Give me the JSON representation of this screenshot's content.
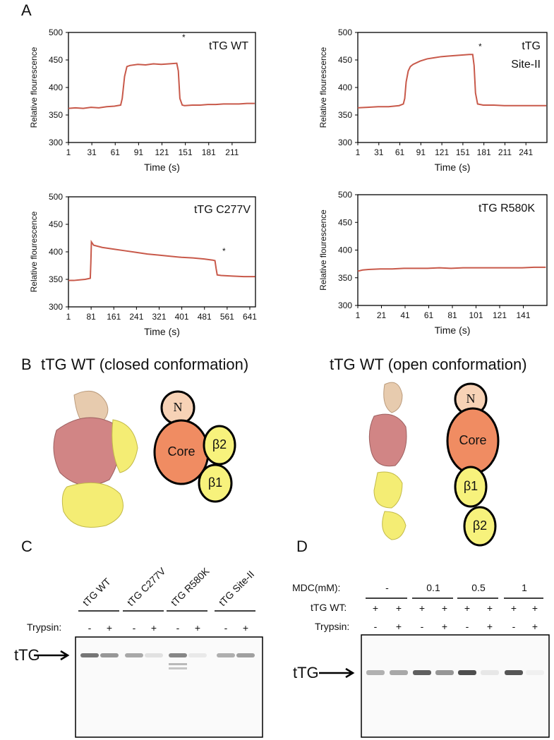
{
  "panel_labels": [
    "A",
    "B",
    "C",
    "D"
  ],
  "chart_data": [
    {
      "type": "line",
      "title": [
        "tTG WT"
      ],
      "annotation": "*",
      "xlabel": "Time (s)",
      "ylabel": "Relative flourescence",
      "x": [
        1,
        10,
        20,
        30,
        40,
        50,
        60,
        68,
        70,
        73,
        76,
        80,
        90,
        100,
        110,
        120,
        130,
        140,
        142,
        144,
        147,
        150,
        160,
        170,
        180,
        190,
        200,
        210,
        220,
        230,
        240
      ],
      "series": [
        {
          "color": "#c8594a",
          "values": [
            362,
            363,
            362,
            364,
            363,
            365,
            366,
            368,
            380,
            420,
            438,
            440,
            442,
            441,
            443,
            442,
            443,
            444,
            430,
            380,
            368,
            367,
            368,
            368,
            369,
            369,
            370,
            370,
            370,
            371,
            371
          ]
        }
      ],
      "xlim": [
        1,
        241
      ],
      "ylim": [
        300,
        500
      ],
      "xticks": [
        1,
        31,
        61,
        91,
        121,
        151,
        181,
        211
      ],
      "yticks": [
        300,
        350,
        400,
        450,
        500
      ]
    },
    {
      "type": "line",
      "title": [
        "tTG",
        "Site-II"
      ],
      "annotation": "*",
      "xlabel": "Time (s)",
      "ylabel": "Relative flourescence",
      "x": [
        1,
        15,
        30,
        45,
        60,
        66,
        68,
        70,
        73,
        76,
        80,
        90,
        100,
        110,
        120,
        130,
        140,
        150,
        160,
        165,
        167,
        169,
        172,
        180,
        195,
        210,
        225,
        240,
        255,
        270
      ],
      "series": [
        {
          "color": "#c8594a",
          "values": [
            363,
            364,
            365,
            365,
            367,
            370,
            380,
            410,
            430,
            438,
            442,
            448,
            452,
            454,
            456,
            457,
            458,
            459,
            460,
            460,
            440,
            390,
            370,
            368,
            368,
            367,
            367,
            367,
            367,
            367
          ]
        }
      ],
      "xlim": [
        1,
        271
      ],
      "ylim": [
        300,
        500
      ],
      "xticks": [
        1,
        31,
        61,
        91,
        121,
        151,
        181,
        211,
        241
      ],
      "yticks": [
        300,
        350,
        400,
        450,
        500
      ]
    },
    {
      "type": "line",
      "title": [
        "tTG C277V"
      ],
      "annotation": "*",
      "xlabel": "Time (s)",
      "ylabel": "Relative flourescence",
      "x": [
        1,
        20,
        40,
        60,
        78,
        80,
        82,
        90,
        120,
        160,
        200,
        240,
        280,
        320,
        360,
        400,
        440,
        480,
        510,
        518,
        522,
        526,
        540,
        580,
        620,
        660
      ],
      "series": [
        {
          "color": "#c8594a",
          "values": [
            348,
            348,
            349,
            350,
            352,
            380,
            418,
            412,
            408,
            405,
            402,
            399,
            396,
            394,
            392,
            390,
            389,
            387,
            385,
            384,
            370,
            358,
            357,
            356,
            355,
            355
          ]
        }
      ],
      "xlim": [
        1,
        661
      ],
      "ylim": [
        300,
        500
      ],
      "xticks": [
        1,
        81,
        161,
        241,
        321,
        401,
        481,
        561,
        641
      ],
      "yticks": [
        300,
        350,
        400,
        450,
        500
      ]
    },
    {
      "type": "line",
      "title": [
        "tTG R580K"
      ],
      "xlabel": "Time (s)",
      "ylabel": "Relative flourescence",
      "x": [
        1,
        5,
        10,
        20,
        30,
        40,
        50,
        60,
        70,
        80,
        90,
        100,
        110,
        120,
        130,
        140,
        150,
        160
      ],
      "series": [
        {
          "color": "#c8594a",
          "values": [
            362,
            364,
            365,
            366,
            366,
            367,
            367,
            367,
            368,
            367,
            368,
            368,
            368,
            368,
            368,
            368,
            369,
            369
          ]
        }
      ],
      "xlim": [
        1,
        161
      ],
      "ylim": [
        300,
        500
      ],
      "xticks": [
        1,
        21,
        41,
        61,
        81,
        101,
        121,
        141
      ],
      "yticks": [
        300,
        350,
        400,
        450,
        500
      ]
    }
  ],
  "panel_b": {
    "closed": {
      "title": "tTG WT (closed conformation)",
      "domains": [
        "N",
        "Core",
        "β2",
        "β1"
      ]
    },
    "open": {
      "title": "tTG WT (open conformation)",
      "domains": [
        "N",
        "Core",
        "β1",
        "β2"
      ]
    }
  },
  "panel_c": {
    "lanes": [
      "tTG WT",
      "tTG C277V",
      "tTG R580K",
      "tTG Site-II"
    ],
    "trypsin_label": "Trypsin:",
    "trypsin": [
      "-",
      "+",
      "-",
      "+",
      "-",
      "+",
      "-",
      "+"
    ],
    "band_label": "tTG"
  },
  "panel_d": {
    "mdc_label": "MDC(mM):",
    "mdc": [
      "-",
      "0.1",
      "0.5",
      "1"
    ],
    "ttg_label": "tTG WT:",
    "ttg": [
      "+",
      "+",
      "+",
      "+",
      "+",
      "+",
      "+",
      "+"
    ],
    "trypsin_label": "Trypsin:",
    "trypsin": [
      "-",
      "+",
      "-",
      "+",
      "-",
      "+",
      "-",
      "+"
    ],
    "band_label": "tTG"
  }
}
